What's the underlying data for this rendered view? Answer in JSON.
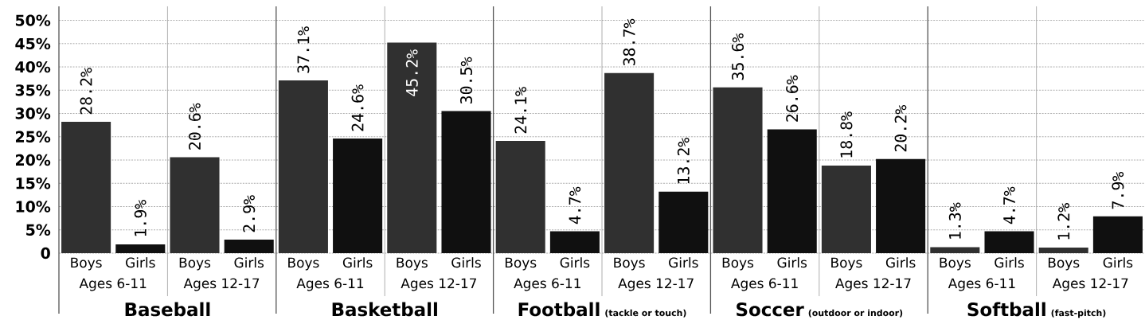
{
  "chart_data": [
    {
      "type": "bar",
      "annotations": [
        "Baseball"
      ],
      "xlabel": "Ages 6-11",
      "categories": [
        "Boys",
        "Girls"
      ],
      "values": [
        28.2,
        1.9
      ],
      "colors": [
        "#303030",
        "#101010"
      ],
      "value_labels": [
        "28.2%",
        "1.9%"
      ],
      "ylim": [
        0,
        53
      ],
      "yticks": [
        0,
        {
          "value": 5,
          "label": "5%"
        },
        {
          "value": 10,
          "label": "10%"
        },
        {
          "value": 15,
          "label": "15%"
        },
        {
          "value": 20,
          "label": "20%"
        },
        {
          "value": 25,
          "label": "25%"
        },
        {
          "value": 30,
          "label": "30%"
        },
        {
          "value": 35,
          "label": "35%"
        },
        {
          "value": 40,
          "label": "40%"
        },
        {
          "value": 45,
          "label": "45%"
        },
        {
          "value": 50,
          "label": "50%"
        }
      ],
      "grid": "y"
    },
    {
      "type": "bar",
      "xlabel": "Ages 12-17",
      "categories": [
        "Boys",
        "Girls"
      ],
      "values": [
        20.6,
        2.9
      ],
      "colors": [
        "#303030",
        "#101010"
      ],
      "value_labels": [
        "20.6%",
        "2.9%"
      ],
      "ylim": [
        0,
        53
      ],
      "yticks": [
        {
          "value": 0,
          "label": null
        },
        {
          "value": 5,
          "label": null
        },
        {
          "value": 10,
          "label": null
        },
        {
          "value": 15,
          "label": null
        },
        {
          "value": 20,
          "label": null
        },
        {
          "value": 25,
          "label": null
        },
        {
          "value": 30,
          "label": null
        },
        {
          "value": 35,
          "label": null
        },
        {
          "value": 40,
          "label": null
        },
        {
          "value": 45,
          "label": null
        },
        {
          "value": 50,
          "label": null
        }
      ],
      "grid": "y",
      "tick_labels": "x"
    },
    {
      "type": "bar",
      "annotations": [
        "Basketball"
      ],
      "xlabel": "Ages 6-11",
      "categories": [
        "Boys",
        "Girls"
      ],
      "values": [
        37.1,
        24.6
      ],
      "colors": [
        "#303030",
        "#101010"
      ],
      "value_labels": [
        "37.1%",
        "24.6%"
      ],
      "ylim": [
        0,
        53
      ],
      "yticks": [
        {
          "value": 0,
          "label": null
        },
        {
          "value": 5,
          "label": null
        },
        {
          "value": 10,
          "label": null
        },
        {
          "value": 15,
          "label": null
        },
        {
          "value": 20,
          "label": null
        },
        {
          "value": 25,
          "label": null
        },
        {
          "value": 30,
          "label": null
        },
        {
          "value": 35,
          "label": null
        },
        {
          "value": 40,
          "label": null
        },
        {
          "value": 45,
          "label": null
        },
        {
          "value": 50,
          "label": null
        }
      ],
      "grid": "y",
      "tick_labels": "x"
    },
    {
      "type": "bar",
      "xlabel": "Ages 12-17",
      "categories": [
        "Boys",
        "Girls"
      ],
      "values": [
        45.2,
        30.5
      ],
      "colors": [
        "#303030",
        "#101010"
      ],
      "value_labels": [
        "45.2%",
        "30.5%"
      ],
      "ylim": [
        0,
        53
      ],
      "yticks": [
        {
          "value": 0,
          "label": null
        },
        {
          "value": 5,
          "label": null
        },
        {
          "value": 10,
          "label": null
        },
        {
          "value": 15,
          "label": null
        },
        {
          "value": 20,
          "label": null
        },
        {
          "value": 25,
          "label": null
        },
        {
          "value": 30,
          "label": null
        },
        {
          "value": 35,
          "label": null
        },
        {
          "value": 40,
          "label": null
        },
        {
          "value": 45,
          "label": null
        },
        {
          "value": 50,
          "label": null
        }
      ],
      "grid": "y",
      "tick_labels": "x"
    },
    {
      "type": "bar",
      "annotations": [
        "Football",
        "(tackle or touch)"
      ],
      "xlabel": "Ages 6-11",
      "categories": [
        "Boys",
        "Girls"
      ],
      "values": [
        24.1,
        4.7
      ],
      "colors": [
        "#303030",
        "#101010"
      ],
      "value_labels": [
        "24.1%",
        "4.7%"
      ],
      "ylim": [
        0,
        53
      ],
      "yticks": [
        {
          "value": 0,
          "label": null
        },
        {
          "value": 5,
          "label": null
        },
        {
          "value": 10,
          "label": null
        },
        {
          "value": 15,
          "label": null
        },
        {
          "value": 20,
          "label": null
        },
        {
          "value": 25,
          "label": null
        },
        {
          "value": 30,
          "label": null
        },
        {
          "value": 35,
          "label": null
        },
        {
          "value": 40,
          "label": null
        },
        {
          "value": 45,
          "label": null
        },
        {
          "value": 50,
          "label": null
        }
      ],
      "grid": "y",
      "tick_labels": "x"
    },
    {
      "type": "bar",
      "xlabel": "Ages 12-17",
      "categories": [
        "Boys",
        "Girls"
      ],
      "values": [
        38.7,
        13.2
      ],
      "colors": [
        "#303030",
        "#101010"
      ],
      "value_labels": [
        "38.7%",
        "13.2%"
      ],
      "ylim": [
        0,
        53
      ],
      "yticks": [
        {
          "value": 0,
          "label": null
        },
        {
          "value": 5,
          "label": null
        },
        {
          "value": 10,
          "label": null
        },
        {
          "value": 15,
          "label": null
        },
        {
          "value": 20,
          "label": null
        },
        {
          "value": 25,
          "label": null
        },
        {
          "value": 30,
          "label": null
        },
        {
          "value": 35,
          "label": null
        },
        {
          "value": 40,
          "label": null
        },
        {
          "value": 45,
          "label": null
        },
        {
          "value": 50,
          "label": null
        }
      ],
      "grid": "y",
      "tick_labels": "x"
    },
    {
      "type": "bar",
      "annotations": [
        "Soccer",
        "(outdoor or indoor)"
      ],
      "xlabel": "Ages 6-11",
      "categories": [
        "Boys",
        "Girls"
      ],
      "values": [
        35.6,
        26.6
      ],
      "colors": [
        "#303030",
        "#101010"
      ],
      "value_labels": [
        "35.6%",
        "26.6%"
      ],
      "ylim": [
        0,
        53
      ],
      "yticks": [
        {
          "value": 0,
          "label": null
        },
        {
          "value": 5,
          "label": null
        },
        {
          "value": 10,
          "label": null
        },
        {
          "value": 15,
          "label": null
        },
        {
          "value": 20,
          "label": null
        },
        {
          "value": 25,
          "label": null
        },
        {
          "value": 30,
          "label": null
        },
        {
          "value": 35,
          "label": null
        },
        {
          "value": 40,
          "label": null
        },
        {
          "value": 45,
          "label": null
        },
        {
          "value": 50,
          "label": null
        }
      ],
      "grid": "y",
      "tick_labels": "x"
    },
    {
      "type": "bar",
      "xlabel": "Ages 12-17",
      "categories": [
        "Boys",
        "Girls"
      ],
      "values": [
        18.8,
        20.2
      ],
      "colors": [
        "#303030",
        "#101010"
      ],
      "value_labels": [
        "18.8%",
        "20.2%"
      ],
      "ylim": [
        0,
        53
      ],
      "yticks": [
        {
          "value": 0,
          "label": null
        },
        {
          "value": 5,
          "label": null
        },
        {
          "value": 10,
          "label": null
        },
        {
          "value": 15,
          "label": null
        },
        {
          "value": 20,
          "label": null
        },
        {
          "value": 25,
          "label": null
        },
        {
          "value": 30,
          "label": null
        },
        {
          "value": 35,
          "label": null
        },
        {
          "value": 40,
          "label": null
        },
        {
          "value": 45,
          "label": null
        },
        {
          "value": 50,
          "label": null
        }
      ],
      "grid": "y",
      "tick_labels": "x"
    },
    {
      "type": "bar",
      "annotations": [
        "Softball",
        "(fast-pitch)"
      ],
      "xlabel": "Ages 6-11",
      "categories": [
        "Boys",
        "Girls"
      ],
      "values": [
        1.3,
        4.7
      ],
      "colors": [
        "#303030",
        "#101010"
      ],
      "value_labels": [
        "1.3%",
        "4.7%"
      ],
      "ylim": [
        0,
        53
      ],
      "yticks": [
        {
          "value": 0,
          "label": null
        },
        {
          "value": 5,
          "label": null
        },
        {
          "value": 10,
          "label": null
        },
        {
          "value": 15,
          "label": null
        },
        {
          "value": 20,
          "label": null
        },
        {
          "value": 25,
          "label": null
        },
        {
          "value": 30,
          "label": null
        },
        {
          "value": 35,
          "label": null
        },
        {
          "value": 40,
          "label": null
        },
        {
          "value": 45,
          "label": null
        },
        {
          "value": 50,
          "label": null
        }
      ],
      "grid": "y",
      "tick_labels": "x"
    },
    {
      "type": "bar",
      "xlabel": "Ages 12-17",
      "categories": [
        "Boys",
        "Girls"
      ],
      "values": [
        1.2,
        7.9
      ],
      "colors": [
        "#303030",
        "#101010"
      ],
      "value_labels": [
        "1.2%",
        "7.9%"
      ],
      "ylim": [
        0,
        53
      ],
      "yticks": [
        {
          "value": 0,
          "label": null
        },
        {
          "value": 5,
          "label": null
        },
        {
          "value": 10,
          "label": null
        },
        {
          "value": 15,
          "label": null
        },
        {
          "value": 20,
          "label": null
        },
        {
          "value": 25,
          "label": null
        },
        {
          "value": 30,
          "label": null
        },
        {
          "value": 35,
          "label": null
        },
        {
          "value": 40,
          "label": null
        },
        {
          "value": 45,
          "label": null
        },
        {
          "value": 50,
          "label": null
        }
      ],
      "grid": "y",
      "tick_labels": "x"
    }
  ]
}
